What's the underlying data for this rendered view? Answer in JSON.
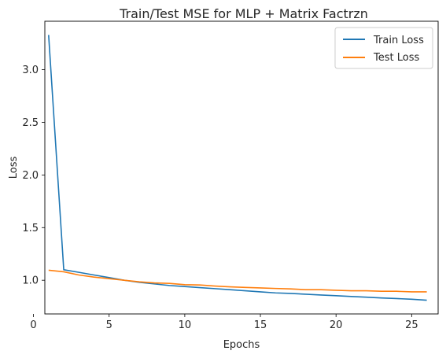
{
  "chart_data": {
    "type": "line",
    "title": "Train/Test MSE for MLP + Matrix Factrzn",
    "xlabel": "Epochs",
    "ylabel": "Loss",
    "xlim": [
      0.75,
      26.75
    ],
    "ylim": [
      0.68,
      3.46
    ],
    "xticks": [
      0,
      5,
      10,
      15,
      20,
      25
    ],
    "yticks": [
      1.0,
      1.5,
      2.0,
      2.5,
      3.0
    ],
    "ytick_labels": [
      "1.0",
      "1.5",
      "2.0",
      "2.5",
      "3.0"
    ],
    "grid": false,
    "legend_position": "top-right",
    "x": [
      1,
      2,
      3,
      4,
      5,
      6,
      7,
      8,
      9,
      10,
      11,
      12,
      13,
      14,
      15,
      16,
      17,
      18,
      19,
      20,
      21,
      22,
      23,
      24,
      25,
      26
    ],
    "series": [
      {
        "name": "Train Loss",
        "color": "#1f77b4",
        "values": [
          3.33,
          1.1,
          1.075,
          1.05,
          1.025,
          1.0,
          0.98,
          0.965,
          0.95,
          0.94,
          0.93,
          0.92,
          0.91,
          0.9,
          0.89,
          0.88,
          0.875,
          0.867,
          0.86,
          0.853,
          0.846,
          0.839,
          0.832,
          0.826,
          0.82,
          0.81
        ]
      },
      {
        "name": "Test Loss",
        "color": "#ff7f0e",
        "values": [
          1.095,
          1.08,
          1.05,
          1.03,
          1.015,
          1.0,
          0.985,
          0.975,
          0.97,
          0.958,
          0.955,
          0.945,
          0.937,
          0.932,
          0.927,
          0.922,
          0.918,
          0.91,
          0.91,
          0.905,
          0.9,
          0.9,
          0.895,
          0.895,
          0.89,
          0.89
        ]
      }
    ]
  }
}
